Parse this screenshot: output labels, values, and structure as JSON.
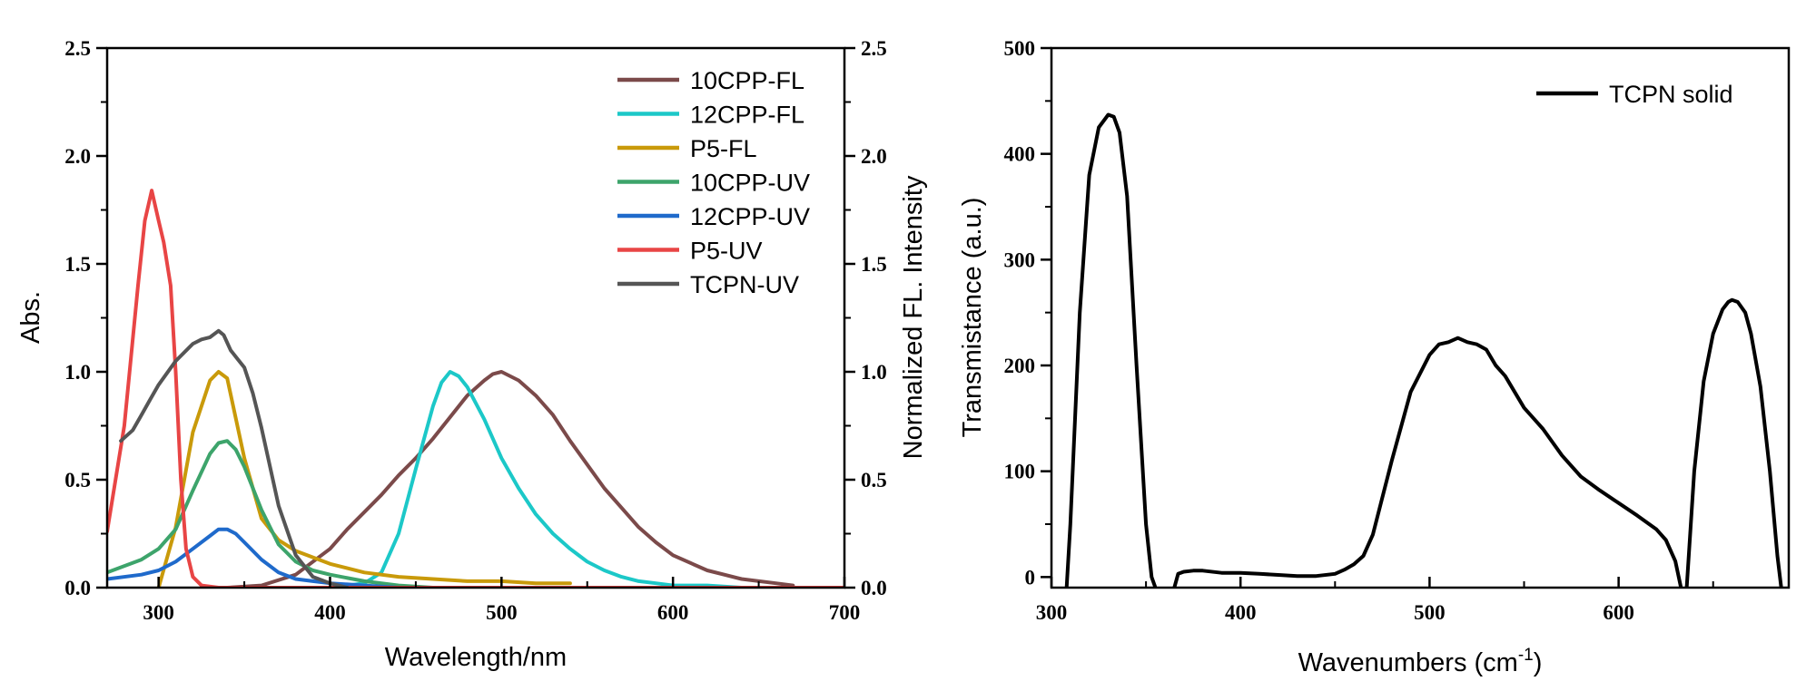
{
  "chart_data": [
    {
      "type": "line",
      "xlabel": "Wavelength/nm",
      "ylabel": "Abs.",
      "y2label": "Normalized FL. Intensity",
      "xlim": [
        270,
        700
      ],
      "ylim": [
        0,
        2.5
      ],
      "y2lim": [
        0,
        2.5
      ],
      "x_ticks": [
        "300",
        "400",
        "500",
        "600",
        "700"
      ],
      "x_tick_values": [
        300,
        400,
        500,
        600,
        700
      ],
      "y_ticks": [
        "0.0",
        "0.5",
        "1.0",
        "1.5",
        "2.0",
        "2.5"
      ],
      "y_tick_values": [
        0,
        0.5,
        1.0,
        1.5,
        2.0,
        2.5
      ],
      "legend_position": "top-right",
      "series": [
        {
          "name": "10CPP-FL",
          "color": "#7b4a4a",
          "x": [
            325,
            340,
            360,
            380,
            400,
            410,
            420,
            430,
            440,
            450,
            460,
            470,
            480,
            490,
            495,
            500,
            510,
            520,
            530,
            540,
            550,
            560,
            570,
            580,
            590,
            600,
            620,
            640,
            660,
            670
          ],
          "y": [
            0,
            0,
            0.01,
            0.06,
            0.18,
            0.27,
            0.35,
            0.43,
            0.52,
            0.6,
            0.69,
            0.79,
            0.89,
            0.96,
            0.99,
            1.0,
            0.96,
            0.89,
            0.8,
            0.68,
            0.57,
            0.46,
            0.37,
            0.28,
            0.21,
            0.15,
            0.08,
            0.04,
            0.02,
            0.01
          ]
        },
        {
          "name": "12CPP-FL",
          "color": "#1cc8c8",
          "x": [
            400,
            420,
            430,
            440,
            450,
            460,
            465,
            470,
            475,
            480,
            490,
            500,
            510,
            520,
            530,
            540,
            550,
            560,
            570,
            580,
            590,
            600,
            620,
            640,
            660
          ],
          "y": [
            0,
            0.02,
            0.07,
            0.25,
            0.55,
            0.84,
            0.95,
            1.0,
            0.98,
            0.93,
            0.78,
            0.6,
            0.46,
            0.34,
            0.25,
            0.18,
            0.12,
            0.08,
            0.05,
            0.03,
            0.02,
            0.01,
            0.01,
            0,
            0
          ]
        },
        {
          "name": "P5-FL",
          "color": "#c99a0a",
          "x": [
            300,
            310,
            320,
            330,
            335,
            340,
            350,
            360,
            370,
            380,
            400,
            420,
            440,
            460,
            480,
            500,
            520,
            530,
            540
          ],
          "y": [
            0,
            0.28,
            0.72,
            0.96,
            1.0,
            0.97,
            0.6,
            0.32,
            0.22,
            0.17,
            0.11,
            0.07,
            0.05,
            0.04,
            0.03,
            0.03,
            0.02,
            0.02,
            0.02
          ]
        },
        {
          "name": "10CPP-UV",
          "color": "#3da46b",
          "x": [
            270,
            290,
            300,
            310,
            320,
            330,
            335,
            340,
            345,
            350,
            360,
            370,
            380,
            390,
            400,
            420,
            440,
            460
          ],
          "y": [
            0.07,
            0.13,
            0.18,
            0.27,
            0.45,
            0.62,
            0.67,
            0.68,
            0.64,
            0.56,
            0.36,
            0.2,
            0.12,
            0.08,
            0.06,
            0.03,
            0.01,
            0
          ]
        },
        {
          "name": "12CPP-UV",
          "color": "#1f6acb",
          "x": [
            270,
            290,
            300,
            310,
            320,
            330,
            335,
            340,
            345,
            350,
            360,
            370,
            380,
            390,
            400,
            420,
            440,
            460
          ],
          "y": [
            0.04,
            0.06,
            0.08,
            0.12,
            0.18,
            0.24,
            0.27,
            0.27,
            0.25,
            0.21,
            0.13,
            0.07,
            0.04,
            0.03,
            0.02,
            0.01,
            0,
            0
          ]
        },
        {
          "name": "P5-UV",
          "color": "#e84545",
          "x": [
            270,
            280,
            288,
            292,
            296,
            300,
            303,
            307,
            310,
            313,
            316,
            320,
            325,
            335,
            360,
            400,
            500,
            600,
            700
          ],
          "y": [
            0.26,
            0.75,
            1.4,
            1.7,
            1.84,
            1.7,
            1.6,
            1.4,
            1.0,
            0.5,
            0.18,
            0.05,
            0.01,
            0,
            0,
            0,
            0,
            0,
            0
          ]
        },
        {
          "name": "TCPN-UV",
          "color": "#555555",
          "x": [
            278,
            285,
            290,
            295,
            300,
            310,
            320,
            325,
            330,
            335,
            338,
            342,
            346,
            350,
            355,
            360,
            365,
            370,
            380,
            390,
            400,
            410
          ],
          "y": [
            0.68,
            0.73,
            0.8,
            0.87,
            0.94,
            1.05,
            1.13,
            1.15,
            1.16,
            1.19,
            1.17,
            1.1,
            1.06,
            1.02,
            0.9,
            0.74,
            0.56,
            0.38,
            0.15,
            0.05,
            0.02,
            0
          ]
        }
      ]
    },
    {
      "type": "line",
      "xlabel": "Wavenumbers (cm",
      "xlabel_sup": "-1",
      "xlabel_close": ")",
      "ylabel": "Transmistance (a.u.)",
      "xlim": [
        300,
        690
      ],
      "ylim": [
        -10,
        500
      ],
      "x_ticks": [
        "300",
        "400",
        "500",
        "600"
      ],
      "x_tick_values": [
        300,
        400,
        500,
        600
      ],
      "y_ticks": [
        "0",
        "100",
        "200",
        "300",
        "400",
        "500"
      ],
      "y_tick_values": [
        0,
        100,
        200,
        300,
        400,
        500
      ],
      "legend_position": "top-right",
      "series": [
        {
          "name": "TCPN solid",
          "color": "#000000",
          "segments": [
            {
              "x": [
                308,
                310,
                315,
                320,
                325,
                330,
                333,
                336,
                340,
                345,
                350,
                353,
                355
              ],
              "y": [
                -10,
                50,
                250,
                380,
                425,
                437,
                435,
                420,
                360,
                200,
                50,
                0,
                -10
              ]
            },
            {
              "x": [
                365,
                367,
                370,
                375,
                380,
                390,
                400,
                410,
                420,
                430,
                440,
                450,
                455,
                460,
                465,
                470,
                480,
                490,
                500,
                505,
                510,
                515,
                520,
                525,
                530,
                535,
                540,
                545,
                550,
                555,
                560,
                570,
                580,
                590,
                600,
                610,
                620,
                625,
                630,
                633
              ],
              "y": [
                -10,
                3,
                5,
                6,
                6,
                4,
                4,
                3,
                2,
                1,
                1,
                3,
                7,
                12,
                20,
                40,
                110,
                175,
                210,
                220,
                222,
                226,
                222,
                220,
                215,
                200,
                190,
                175,
                160,
                150,
                140,
                115,
                95,
                82,
                70,
                58,
                45,
                35,
                15,
                -10
              ]
            },
            {
              "x": [
                636,
                640,
                645,
                650,
                655,
                658,
                660,
                663,
                667,
                670,
                675,
                680,
                684,
                686
              ],
              "y": [
                -10,
                100,
                185,
                230,
                253,
                260,
                262,
                260,
                250,
                230,
                180,
                100,
                20,
                -10
              ]
            }
          ]
        }
      ]
    }
  ]
}
